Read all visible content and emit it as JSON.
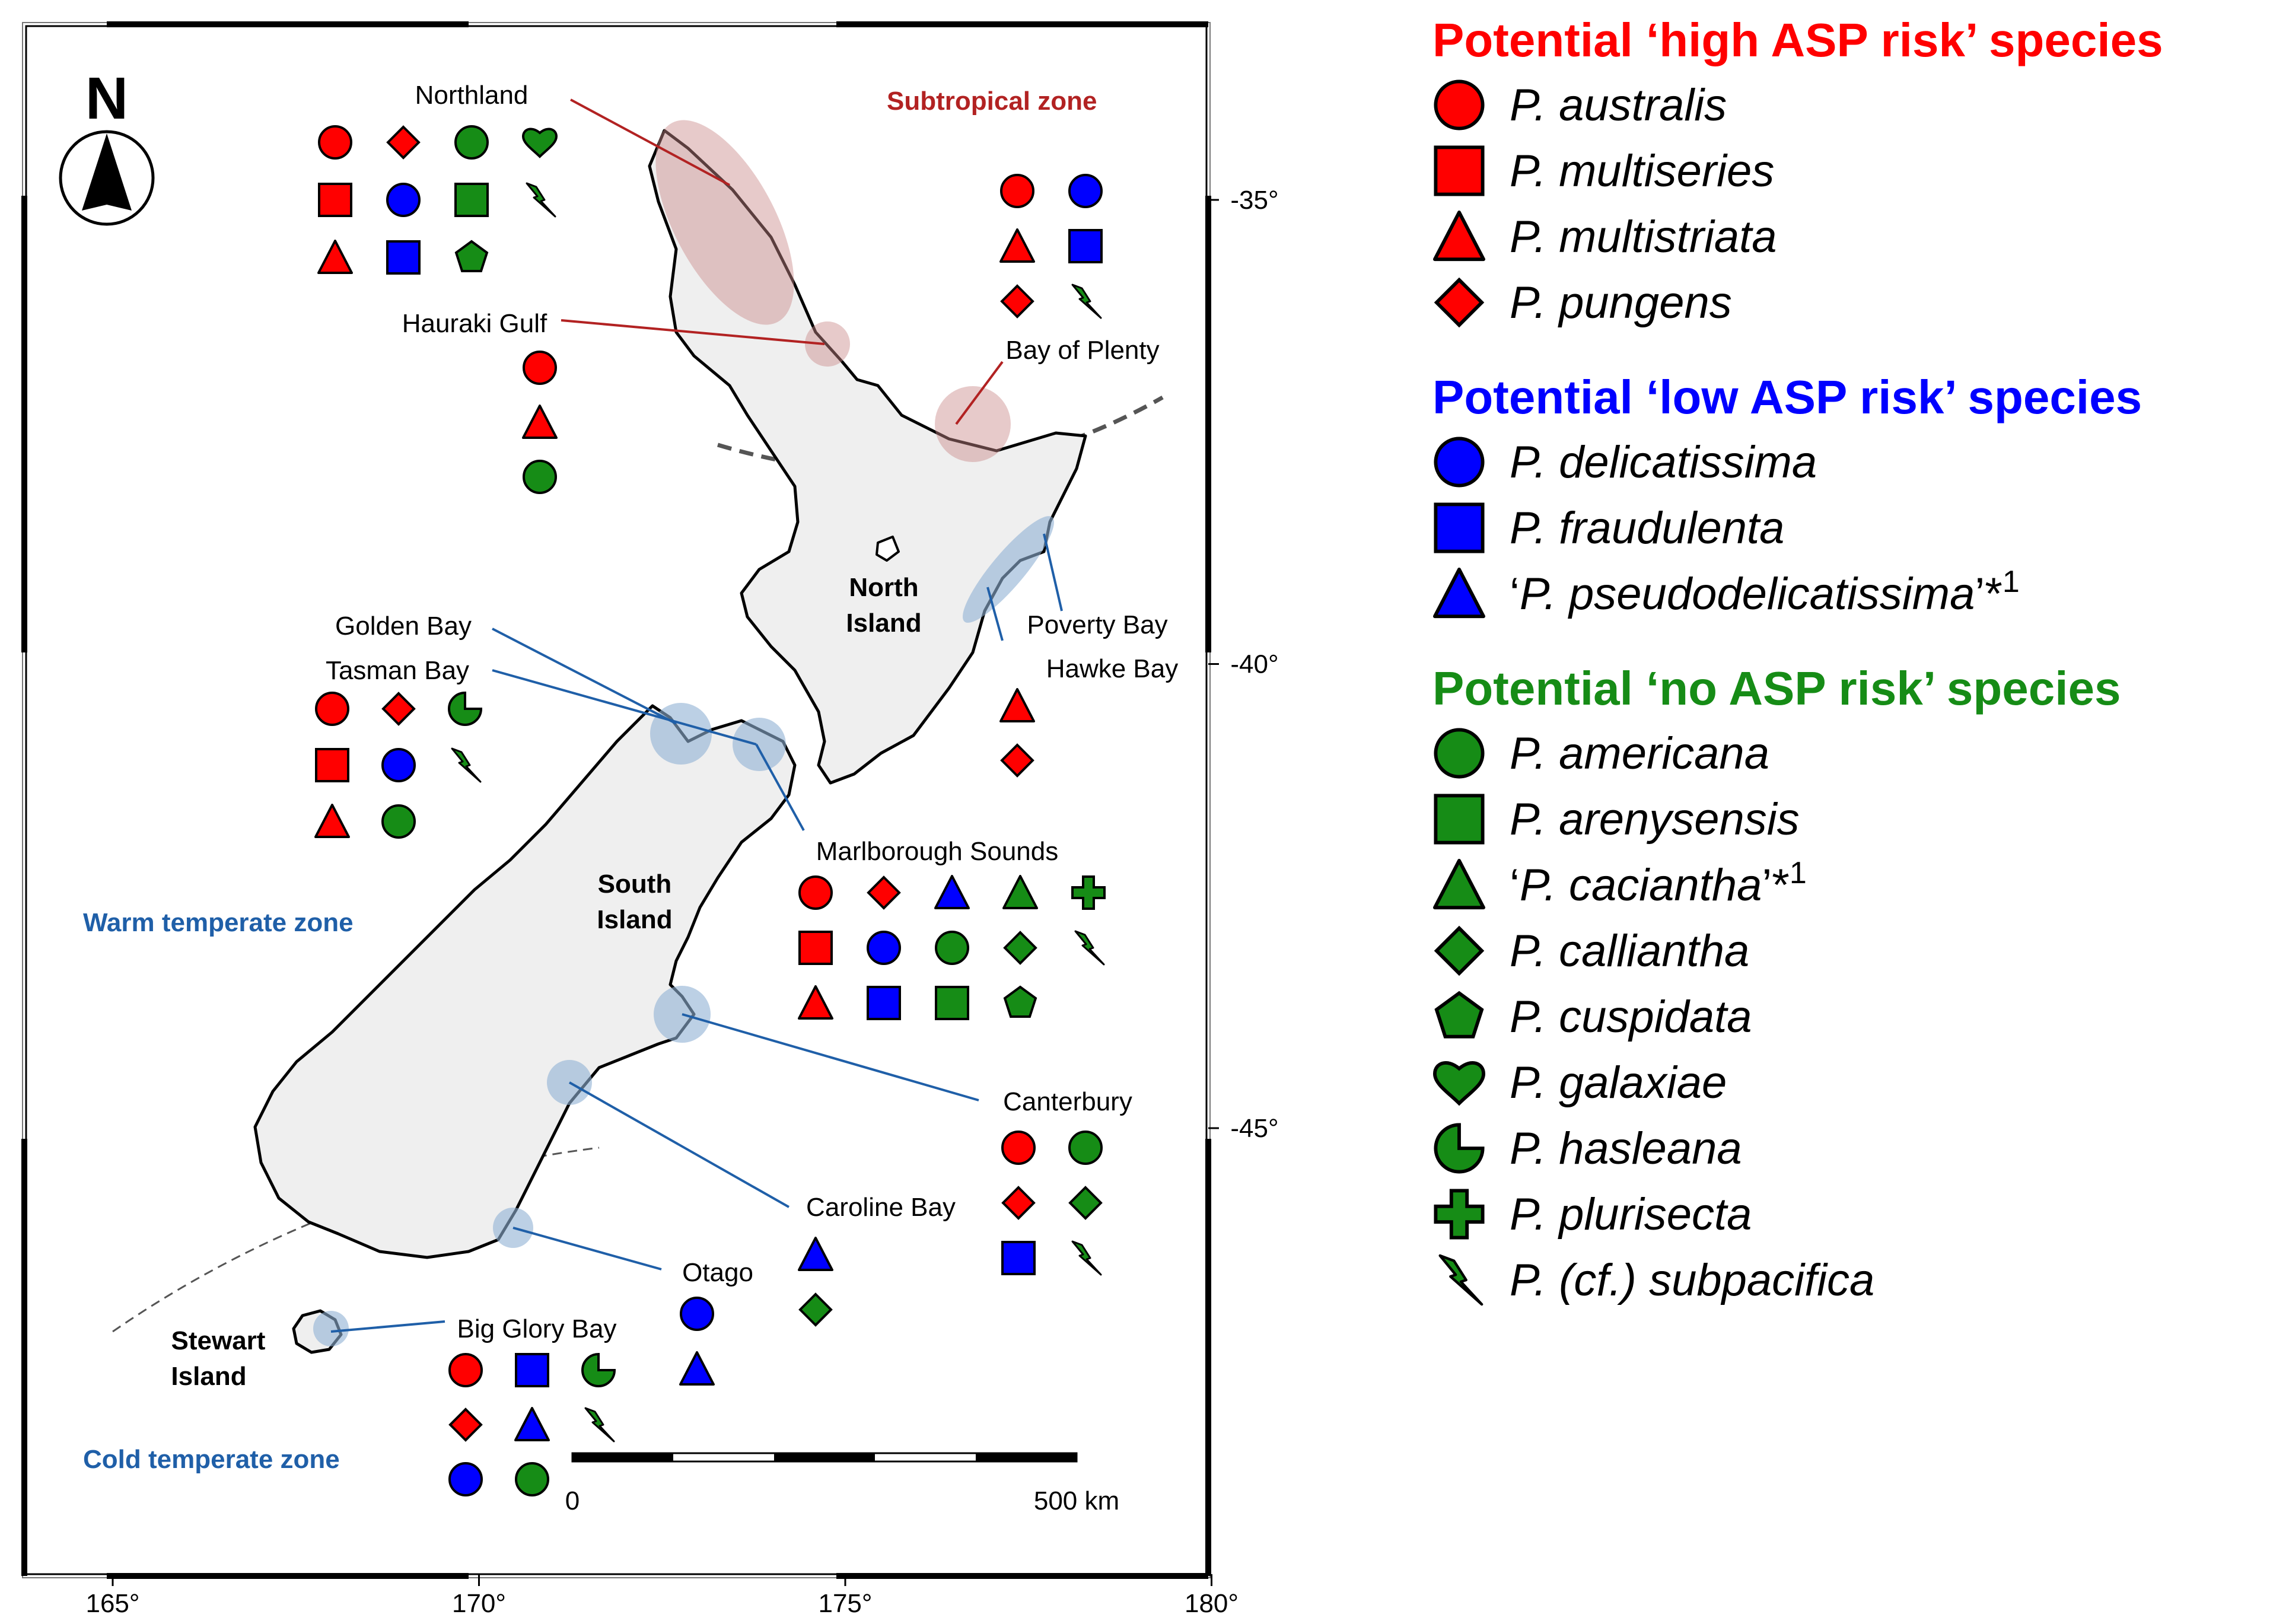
{
  "colors": {
    "high": "#ff0000",
    "low": "#0000ff",
    "none": "#168c16",
    "zone_sub": "#b22222",
    "zone_temp": "#1f5fa8",
    "line_sub": "#b22222",
    "line_temp": "#1f5fa8"
  },
  "zones": {
    "subtropical": "Subtropical zone",
    "warm": "Warm temperate zone",
    "cold": "Cold temperate zone"
  },
  "islands": {
    "north_l1": "North",
    "north_l2": "Island",
    "south_l1": "South",
    "south_l2": "Island",
    "stewart_l1": "Stewart",
    "stewart_l2": "Island"
  },
  "axes": {
    "lon": [
      {
        "v": 165,
        "label": "165°"
      },
      {
        "v": 170,
        "label": "170°"
      },
      {
        "v": 175,
        "label": "175°"
      },
      {
        "v": 180,
        "label": "180°"
      }
    ],
    "lat": [
      {
        "v": -35,
        "label": "-35°"
      },
      {
        "v": -40,
        "label": "-40°"
      },
      {
        "v": -45,
        "label": "-45°"
      }
    ]
  },
  "north_arrow": "N",
  "scale": {
    "start": "0",
    "end": "500 km"
  },
  "regions": [
    {
      "name": "Northland",
      "species": [
        [
          "high",
          "circle"
        ],
        [
          "high",
          "diamond"
        ],
        [
          "none",
          "circle"
        ],
        [
          "none",
          "heart"
        ],
        [
          "high",
          "square"
        ],
        [
          "low",
          "circle"
        ],
        [
          "none",
          "square"
        ],
        [
          "none",
          "bolt"
        ],
        [
          "high",
          "triangle"
        ],
        [
          "low",
          "square"
        ],
        [
          "none",
          "pentagon"
        ]
      ]
    },
    {
      "name": "Hauraki Gulf",
      "species": [
        [
          "high",
          "circle"
        ],
        [
          "high",
          "triangle"
        ],
        [
          "none",
          "circle"
        ]
      ]
    },
    {
      "name": "Bay of Plenty",
      "species": [
        [
          "high",
          "circle"
        ],
        [
          "low",
          "circle"
        ],
        [
          "high",
          "triangle"
        ],
        [
          "low",
          "square"
        ],
        [
          "high",
          "diamond"
        ],
        [
          "none",
          "bolt"
        ]
      ]
    },
    {
      "name": "Golden Bay",
      "species": []
    },
    {
      "name": "Tasman Bay",
      "species": [
        [
          "high",
          "circle"
        ],
        [
          "high",
          "diamond"
        ],
        [
          "none",
          "pacman"
        ],
        [
          "high",
          "square"
        ],
        [
          "low",
          "circle"
        ],
        [
          "none",
          "bolt"
        ],
        [
          "high",
          "triangle"
        ],
        [
          "none",
          "circle"
        ]
      ]
    },
    {
      "name": "Poverty Bay",
      "species": []
    },
    {
      "name": "Hawke Bay",
      "species": [
        [
          "high",
          "triangle"
        ],
        [
          "high",
          "diamond"
        ]
      ]
    },
    {
      "name": "Marlborough Sounds",
      "species": [
        [
          "high",
          "circle"
        ],
        [
          "high",
          "diamond"
        ],
        [
          "low",
          "triangle"
        ],
        [
          "none",
          "triangle"
        ],
        [
          "none",
          "cross"
        ],
        [
          "high",
          "square"
        ],
        [
          "low",
          "circle"
        ],
        [
          "none",
          "circle"
        ],
        [
          "none",
          "diamond"
        ],
        [
          "none",
          "bolt"
        ],
        [
          "high",
          "triangle"
        ],
        [
          "low",
          "square"
        ],
        [
          "none",
          "square"
        ],
        [
          "none",
          "pentagon"
        ]
      ]
    },
    {
      "name": "Canterbury",
      "species": [
        [
          "high",
          "circle"
        ],
        [
          "none",
          "circle"
        ],
        [
          "high",
          "diamond"
        ],
        [
          "none",
          "diamond"
        ],
        [
          "low",
          "square"
        ],
        [
          "none",
          "bolt"
        ]
      ]
    },
    {
      "name": "Caroline Bay",
      "species": [
        [
          "low",
          "triangle"
        ],
        [
          "none",
          "diamond"
        ]
      ]
    },
    {
      "name": "Otago",
      "species": [
        [
          "low",
          "circle"
        ],
        [
          "low",
          "triangle"
        ]
      ]
    },
    {
      "name": "Big Glory Bay",
      "species": [
        [
          "high",
          "circle"
        ],
        [
          "low",
          "square"
        ],
        [
          "none",
          "pacman"
        ],
        [
          "high",
          "diamond"
        ],
        [
          "low",
          "triangle"
        ],
        [
          "none",
          "bolt"
        ],
        [
          "low",
          "circle"
        ],
        [
          "none",
          "circle"
        ]
      ]
    }
  ],
  "legend": [
    {
      "title": "Potential ‘high ASP risk’ species",
      "color": "high",
      "items": [
        {
          "shape": "circle",
          "pre": "",
          "sp": "P. australis",
          "post": "",
          "sup": ""
        },
        {
          "shape": "square",
          "pre": "",
          "sp": "P. multiseries",
          "post": "",
          "sup": ""
        },
        {
          "shape": "triangle",
          "pre": "",
          "sp": "P. multistriata",
          "post": "",
          "sup": ""
        },
        {
          "shape": "diamond",
          "pre": "",
          "sp": "P. pungens",
          "post": "",
          "sup": ""
        }
      ]
    },
    {
      "title": "Potential ‘low ASP risk’ species",
      "color": "low",
      "items": [
        {
          "shape": "circle",
          "pre": "",
          "sp": "P. delicatissima",
          "post": "",
          "sup": ""
        },
        {
          "shape": "square",
          "pre": "",
          "sp": "P. fraudulenta",
          "post": "",
          "sup": ""
        },
        {
          "shape": "triangle",
          "pre": "‘",
          "sp": "P. pseudodelicatissima",
          "post": "’*",
          "sup": "1"
        }
      ]
    },
    {
      "title": "Potential ‘no ASP risk’ species",
      "color": "none",
      "items": [
        {
          "shape": "circle",
          "pre": "",
          "sp": "P. americana",
          "post": "",
          "sup": ""
        },
        {
          "shape": "square",
          "pre": "",
          "sp": "P. arenysensis",
          "post": "",
          "sup": ""
        },
        {
          "shape": "triangle",
          "pre": "‘",
          "sp": "P. caciantha",
          "post": "’*",
          "sup": "1"
        },
        {
          "shape": "diamond",
          "pre": "",
          "sp": "P. calliantha",
          "post": "",
          "sup": ""
        },
        {
          "shape": "pentagon",
          "pre": "",
          "sp": "P. cuspidata",
          "post": "",
          "sup": ""
        },
        {
          "shape": "heart",
          "pre": "",
          "sp": "P. galaxiae",
          "post": "",
          "sup": ""
        },
        {
          "shape": "pacman",
          "pre": "",
          "sp": "P. hasleana",
          "post": "",
          "sup": ""
        },
        {
          "shape": "cross",
          "pre": "",
          "sp": "P. plurisecta",
          "post": "",
          "sup": ""
        },
        {
          "shape": "bolt",
          "pre": "",
          "sp": "P. (cf.) subpacifica",
          "post": "",
          "sup": ""
        }
      ]
    }
  ]
}
